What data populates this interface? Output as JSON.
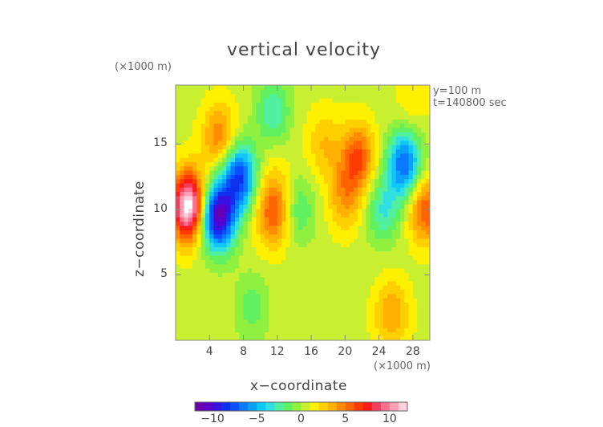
{
  "chart_data": {
    "type": "heatmap",
    "title": "vertical velocity",
    "xlabel": "x−coordinate",
    "ylabel": "z−coordinate",
    "x_unit": "(×1000 m)",
    "y_unit": "(×1000 m)",
    "annotations": [
      "y=100 m",
      "t=140800 sec"
    ],
    "xlim": [
      0,
      30
    ],
    "ylim": [
      0,
      19.5
    ],
    "x_ticks": [
      4,
      8,
      12,
      16,
      20,
      24,
      28
    ],
    "x_tick_labels": [
      "4",
      "8",
      "12",
      "16",
      "20",
      "24",
      "28"
    ],
    "y_ticks": [
      5,
      10,
      15
    ],
    "y_tick_labels": [
      "5",
      "10",
      "15"
    ],
    "colorbar": {
      "min": -12,
      "max": 12,
      "ticks": [
        -10,
        -5,
        0,
        5,
        10
      ],
      "tick_labels": [
        "−10",
        "−5",
        "0",
        "5",
        "10"
      ],
      "colors": [
        "#6a00a8",
        "#5a00c8",
        "#3a10e0",
        "#1030f0",
        "#0a50ff",
        "#0a78ff",
        "#0aa0ff",
        "#10c8f8",
        "#30e0e0",
        "#50f0a0",
        "#60f060",
        "#90f040",
        "#c8f030",
        "#fff000",
        "#ffd000",
        "#ffb000",
        "#ff8c00",
        "#ff6400",
        "#ff3c00",
        "#ff1a1a",
        "#f04060",
        "#ff7090",
        "#ffa0b4",
        "#ffd0dc"
      ]
    },
    "field_features": [
      {
        "kind": "max",
        "x": 1.5,
        "z": 10.3,
        "value": 12.5
      },
      {
        "kind": "max",
        "x": 5.2,
        "z": 15.5,
        "value": 5
      },
      {
        "kind": "min",
        "x": 5.0,
        "z": 9.5,
        "value": -11
      },
      {
        "kind": "min",
        "x": 7.5,
        "z": 12.5,
        "value": -8
      },
      {
        "kind": "max",
        "x": 11.5,
        "z": 9.8,
        "value": 6
      },
      {
        "kind": "max",
        "x": 12.0,
        "z": 13.0,
        "value": 1.5
      },
      {
        "kind": "min",
        "x": 11.5,
        "z": 17.5,
        "value": -3
      },
      {
        "kind": "max",
        "x": 21.5,
        "z": 14.0,
        "value": 6
      },
      {
        "kind": "max",
        "x": 20.0,
        "z": 11.0,
        "value": 4
      },
      {
        "kind": "max",
        "x": 17.5,
        "z": 15.0,
        "value": 3
      },
      {
        "kind": "min",
        "x": 27.0,
        "z": 13.5,
        "value": -7
      },
      {
        "kind": "min",
        "x": 24.5,
        "z": 10.0,
        "value": -3
      },
      {
        "kind": "max",
        "x": 29.5,
        "z": 10.0,
        "value": 6
      },
      {
        "kind": "max",
        "x": 25.5,
        "z": 2.0,
        "value": 4
      },
      {
        "kind": "min",
        "x": 14.5,
        "z": 10.0,
        "value": -2
      },
      {
        "kind": "min",
        "x": 9.0,
        "z": 2.5,
        "value": -1.5
      },
      {
        "kind": "max",
        "x": 28.0,
        "z": 18.5,
        "value": 2
      }
    ]
  }
}
